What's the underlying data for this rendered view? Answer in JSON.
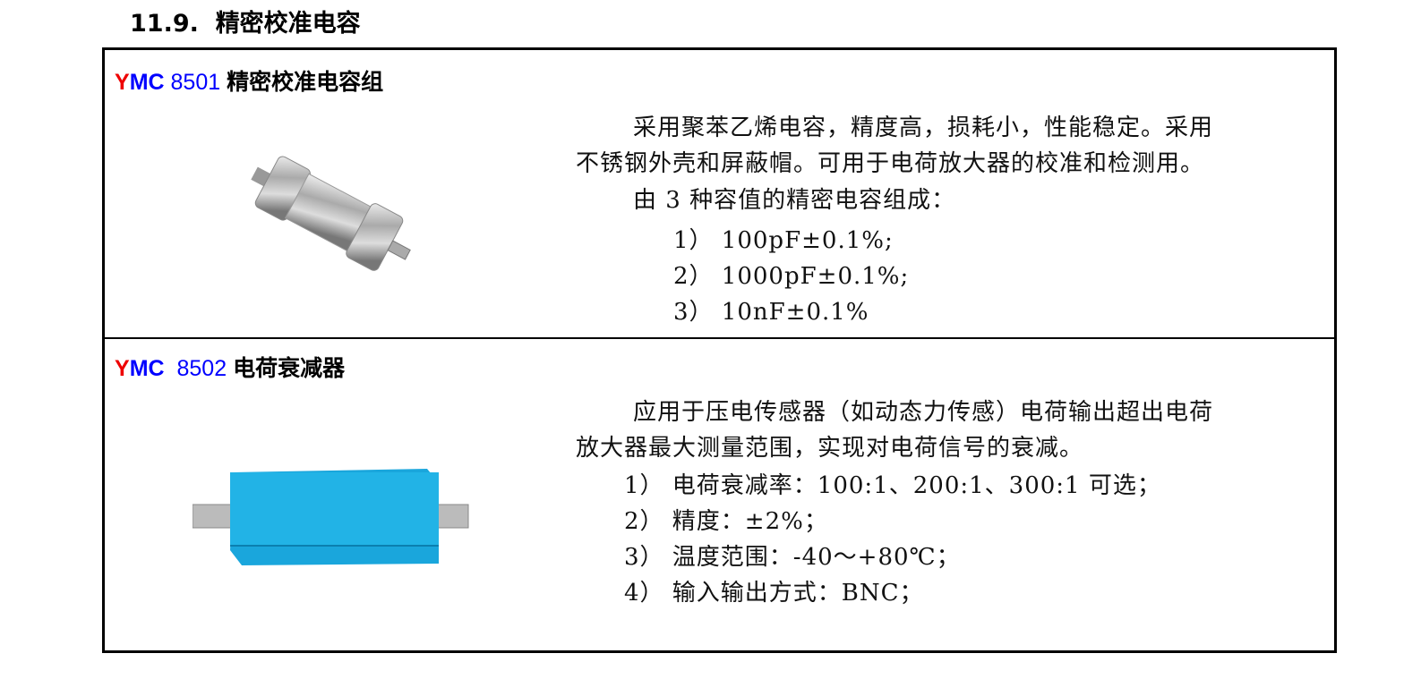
{
  "section": {
    "number": "11.9.",
    "title": "精密校准电容"
  },
  "products": [
    {
      "brand_y": "Y",
      "brand_mc": "MC",
      "model": "8501",
      "name": "精密校准电容组",
      "lines": [
        "采用聚苯乙烯电容，精度高，损耗小，性能稳定。采用",
        "不锈钢外壳和屏蔽帽。可用于电荷放大器的校准和检测用。",
        "由 3 种容值的精密电容组成："
      ],
      "items": [
        "1） 100pF±0.1%;",
        "2） 1000pF±0.1%;",
        "3） 10nF±0.1%"
      ]
    },
    {
      "brand_y": "Y",
      "brand_mc": "MC",
      "model": "8502",
      "name": "电荷衰减器",
      "lines": [
        "应用于压电传感器（如动态力传感）电荷输出超出电荷",
        "放大器最大测量范围，实现对电荷信号的衰减。"
      ],
      "items": [
        "1） 电荷衰减率：100:1、200:1、300:1 可选；",
        "2） 精度：±2%；",
        "3） 温度范围：-40～+80℃；",
        "4） 输入输出方式：BNC；"
      ]
    }
  ]
}
